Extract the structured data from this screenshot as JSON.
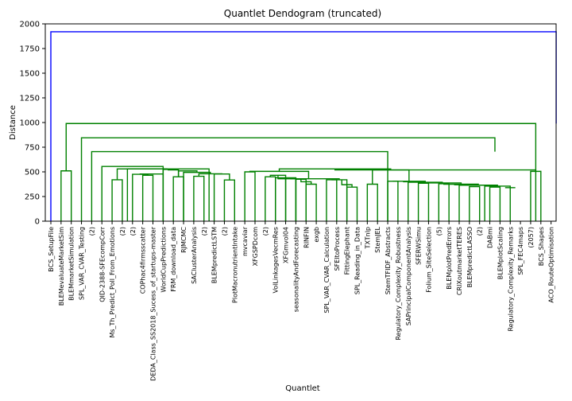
{
  "chart_data": {
    "type": "dendrogram",
    "title": "Quantlet Dendogram (truncated)",
    "xlabel": "Quantlet",
    "ylabel": "Distance",
    "ylim": [
      0,
      2000
    ],
    "yticks": [
      "0",
      "250",
      "500",
      "750",
      "1000",
      "1250",
      "1500",
      "1750",
      "2000"
    ],
    "leaves": [
      "BCS_SetupFile",
      "BLEMevaluateMarketSim",
      "BLEMmarketSimulation",
      "SPL_VAR_CVAR_Testing",
      "(2)",
      "QID-2388-SFEcompCorr",
      "Ms_Th_Predict_Poll_From_Emotions",
      "(2)",
      "(2)",
      "COPhac4firmsscatter",
      "DEDA_Class_SS2018_Sucess_of_startups-master",
      "WorldCupPredictions",
      "FRM_download_data",
      "RJMCMC",
      "SAClusterAnalysis",
      "(2)",
      "BLEMpredictLSTM",
      "(2)",
      "PlotMacronutrientIntake",
      "mvcaviar",
      "XFGSPDcom",
      "(2)",
      "VolLinkagesVecmRes",
      "XFGmvol04",
      "seasonalityAndForecasting",
      "RINFIN",
      "exgb",
      "SPL_VAR_CVAR_Calculation",
      "SFEItoProcess",
      "FittingElephant",
      "SPL_Reading_in_Data",
      "TXTnlp",
      "StemJEL",
      "StemTFIDF_Abstracts",
      "Regulatory_Complexity_Robustness",
      "SAPrincipalComponentAnalysis",
      "SFERWSimu",
      "Folium_SiteSelection",
      "(5)",
      "BLEMplotPredErrors",
      "CRIXoutmarketTERES",
      "BLEMpredictLASSO",
      "(2)",
      "DABmi",
      "BLEMplotScaling",
      "Regulatory_Complexity_Remarks",
      "SPL_FEC4maps",
      "(2057)",
      "BCS_Shapes",
      "ACO_RouteOptimisation"
    ],
    "links": [
      {
        "left": 0,
        "right": 49.5,
        "height": 1920,
        "color": "#0000ff"
      },
      {
        "left": 1.5,
        "right": 97.5,
        "height": 990,
        "color": "#008000"
      },
      {
        "left": 1,
        "right": 2,
        "height": 510,
        "color": "#008000"
      },
      {
        "left": 3,
        "right": 193.5,
        "height": 845,
        "color": "#008000"
      },
      {
        "left": 4,
        "right": 383,
        "height": 705,
        "color": "#008000"
      },
      {
        "left": 5,
        "right": 761,
        "height": 555,
        "color": "#008000"
      },
      {
        "left": 6.5,
        "right": 1515.5,
        "height": 530,
        "color": "#008000"
      },
      {
        "left": 6,
        "right": 7,
        "height": 420,
        "color": "#008000"
      },
      {
        "left": 9,
        "right": 10,
        "height": 465,
        "color": "#008000"
      },
      {
        "left": 8,
        "right": 9.5,
        "height": 475,
        "color": "#008000"
      },
      {
        "left": 8.75,
        "right": 11,
        "height": 478,
        "color": "#008000"
      },
      {
        "left": 12,
        "right": 13,
        "height": 450,
        "color": "#008000"
      },
      {
        "left": 11.5,
        "right": 12.5,
        "height": 520,
        "color": "#008000"
      },
      {
        "left": 11,
        "right": 11.75,
        "height": 525,
        "color": "#008000"
      },
      {
        "left": 7.5,
        "right": 11.375,
        "height": 530,
        "color": "#008000"
      },
      {
        "left": 14,
        "right": 15,
        "height": 455,
        "color": "#008000"
      },
      {
        "left": 17,
        "right": 18,
        "height": 418,
        "color": "#008000"
      },
      {
        "left": 16,
        "right": 17.5,
        "height": 478,
        "color": "#008000"
      },
      {
        "left": 14.5,
        "right": 16.75,
        "height": 480,
        "color": "#008000"
      },
      {
        "left": 13,
        "right": 15.625,
        "height": 495,
        "color": "#008000"
      },
      {
        "left": 12.5,
        "right": 14.3125,
        "height": 510,
        "color": "#008000"
      },
      {
        "left": 19,
        "right": 20,
        "height": 500,
        "color": "#008000"
      },
      {
        "left": 21,
        "right": 22,
        "height": 450,
        "color": "#008000"
      },
      {
        "left": 23,
        "right": 24,
        "height": 435,
        "color": "#008000"
      },
      {
        "left": 25,
        "right": 26,
        "height": 375,
        "color": "#008000"
      },
      {
        "left": 24.5,
        "right": 25.5,
        "height": 400,
        "color": "#008000"
      },
      {
        "left": 24,
        "right": 25,
        "height": 425,
        "color": "#008000"
      },
      {
        "left": 23.5,
        "right": 24.5,
        "height": 430,
        "color": "#008000"
      },
      {
        "left": 22,
        "right": 24,
        "height": 440,
        "color": "#008000"
      },
      {
        "left": 21.5,
        "right": 23,
        "height": 465,
        "color": "#008000"
      },
      {
        "left": 27,
        "right": 28,
        "height": 420,
        "color": "#008000"
      },
      {
        "left": 29,
        "right": 30,
        "height": 345,
        "color": "#008000"
      },
      {
        "left": 28.5,
        "right": 29.5,
        "height": 370,
        "color": "#008000"
      },
      {
        "left": 27.5,
        "right": 29,
        "height": 420,
        "color": "#008000"
      },
      {
        "left": 22.25,
        "right": 28.25,
        "height": 430,
        "color": "#008000"
      },
      {
        "left": 19.5,
        "right": 25.25,
        "height": 505,
        "color": "#008000"
      },
      {
        "left": 31,
        "right": 32,
        "height": 375,
        "color": "#008000"
      },
      {
        "left": 33,
        "right": 34,
        "height": 405,
        "color": "#008000"
      },
      {
        "left": 34.5,
        "right": 35.5,
        "height": 400,
        "color": "#008000"
      },
      {
        "left": 36,
        "right": 37,
        "height": 385,
        "color": "#008000"
      },
      {
        "left": 38,
        "right": 39,
        "height": 380,
        "color": "#008000"
      },
      {
        "left": 39.5,
        "right": 40.5,
        "height": 370,
        "color": "#008000"
      },
      {
        "left": 41,
        "right": 42,
        "height": 350,
        "color": "#008000"
      },
      {
        "left": 43,
        "right": 44,
        "height": 345,
        "color": "#008000"
      },
      {
        "left": 44.5,
        "right": 45.5,
        "height": 340,
        "color": "#008000"
      },
      {
        "left": 42.5,
        "right": 45,
        "height": 355,
        "color": "#008000"
      },
      {
        "left": 40,
        "right": 43.75,
        "height": 365,
        "color": "#008000"
      },
      {
        "left": 38.5,
        "right": 41.875,
        "height": 375,
        "color": "#008000"
      },
      {
        "left": 36.5,
        "right": 40.1875,
        "height": 388,
        "color": "#008000"
      },
      {
        "left": 35,
        "right": 38.34375,
        "height": 395,
        "color": "#008000"
      },
      {
        "left": 33.5,
        "right": 36.671875,
        "height": 405,
        "color": "#008000"
      },
      {
        "left": 31.5,
        "right": 35.0859375,
        "height": 520,
        "color": "#008000"
      },
      {
        "left": 22.375,
        "right": 33.29296875,
        "height": 530,
        "color": "#008000"
      },
      {
        "left": 47,
        "right": 48,
        "height": 505,
        "color": "#008000"
      },
      {
        "left": 27.833,
        "right": 47.5,
        "height": 520,
        "color": "#008000"
      }
    ]
  }
}
